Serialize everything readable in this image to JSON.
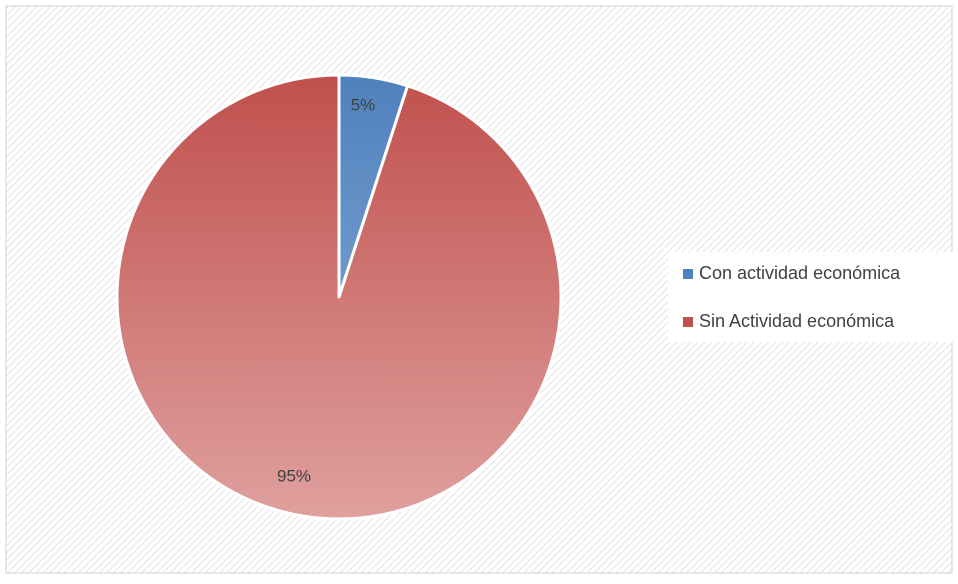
{
  "chart_data": {
    "type": "pie",
    "title": "",
    "slices": [
      {
        "label": "Con actividad económica",
        "value": 5,
        "data_label": "5%",
        "color": "#4F81BD",
        "gradient_light": "#93B3DA"
      },
      {
        "label": "Sin Actividad económica",
        "value": 95,
        "data_label": "95%",
        "color": "#C0504D",
        "gradient_light": "#DFA09E"
      }
    ],
    "legend": {
      "placement": "right",
      "entries": [
        "Con actividad económica",
        "Sin Actividad económica"
      ]
    },
    "background": "hatched"
  }
}
